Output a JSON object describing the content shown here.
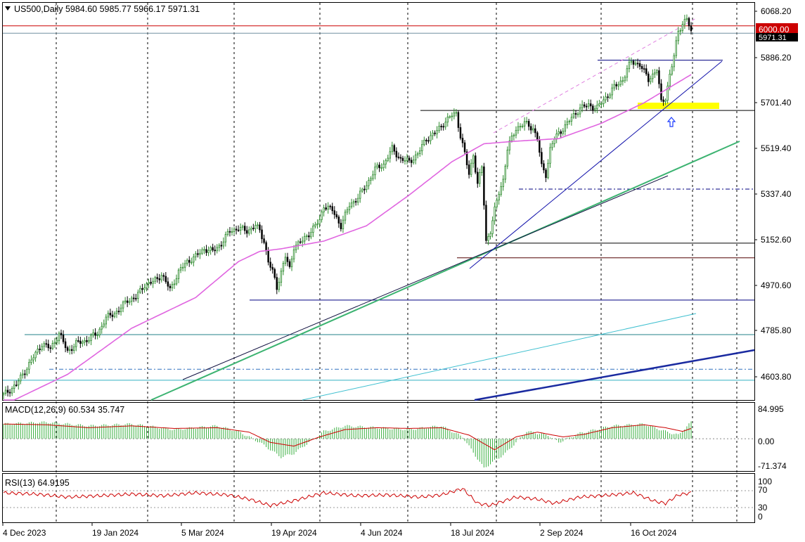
{
  "main_panel": {
    "title": "US500,Daily  5984.60 5985.77 5966.17 5971.31",
    "price_ticks": [
      "6068.20",
      "5886.20",
      "5701.40",
      "5519.40",
      "5337.40",
      "5152.60",
      "4970.60",
      "4785.80",
      "4603.80"
    ],
    "current_price_label": "5971.31",
    "level_label": "6000.00",
    "colors": {
      "bull": "#2e8b2e",
      "bear": "#000000",
      "ma_pink": "#e066e0",
      "resistance_red": "#cc0000",
      "highlight_yellow": "#ffff00",
      "trend_green": "#3cb371",
      "trend_navy": "#000080",
      "trend_blue": "#1010aa",
      "teal": "#20a0b0"
    }
  },
  "date_ticks": [
    "4 Dec 2023",
    "19 Jan 2024",
    "5 Mar 2024",
    "19 Apr 2024",
    "4 Jun 2024",
    "18 Jul 2024",
    "2 Sep 2024",
    "16 Oct 2024"
  ],
  "macd_panel": {
    "title": "MACD(12,26,9) 60.534 35.747",
    "ticks": [
      "84.995",
      "0.00",
      "-71.374"
    ]
  },
  "rsi_panel": {
    "title": "RSI(13) 64.9195",
    "ticks": [
      "100",
      "70",
      "30",
      "0"
    ]
  },
  "icons": {
    "collapse": "triangle-down-icon",
    "arrow": "up-arrow-icon"
  },
  "chart_data": {
    "type": "candlestick",
    "symbol": "US500",
    "timeframe": "Daily",
    "last_bar": {
      "open": 5984.6,
      "high": 5985.77,
      "low": 5966.17,
      "close": 5971.31
    },
    "ylim": [
      4540,
      6090
    ],
    "close_path": [
      [
        0,
        4560
      ],
      [
        6,
        4600
      ],
      [
        12,
        4680
      ],
      [
        18,
        4760
      ],
      [
        22,
        4740
      ],
      [
        26,
        4800
      ],
      [
        30,
        4730
      ],
      [
        34,
        4760
      ],
      [
        38,
        4770
      ],
      [
        44,
        4800
      ],
      [
        48,
        4860
      ],
      [
        54,
        4890
      ],
      [
        58,
        4930
      ],
      [
        62,
        4940
      ],
      [
        66,
        4990
      ],
      [
        70,
        5000
      ],
      [
        74,
        5030
      ],
      [
        78,
        4970
      ],
      [
        82,
        5040
      ],
      [
        86,
        5080
      ],
      [
        90,
        5100
      ],
      [
        94,
        5130
      ],
      [
        98,
        5120
      ],
      [
        102,
        5150
      ],
      [
        106,
        5200
      ],
      [
        110,
        5210
      ],
      [
        114,
        5200
      ],
      [
        118,
        5220
      ],
      [
        120,
        5200
      ],
      [
        122,
        5160
      ],
      [
        124,
        5080
      ],
      [
        126,
        5040
      ],
      [
        128,
        4980
      ],
      [
        130,
        5040
      ],
      [
        132,
        5100
      ],
      [
        134,
        5050
      ],
      [
        136,
        5140
      ],
      [
        140,
        5160
      ],
      [
        144,
        5200
      ],
      [
        148,
        5240
      ],
      [
        150,
        5300
      ],
      [
        154,
        5280
      ],
      [
        158,
        5220
      ],
      [
        162,
        5300
      ],
      [
        166,
        5330
      ],
      [
        170,
        5380
      ],
      [
        174,
        5440
      ],
      [
        178,
        5460
      ],
      [
        182,
        5520
      ],
      [
        186,
        5480
      ],
      [
        190,
        5470
      ],
      [
        194,
        5500
      ],
      [
        198,
        5560
      ],
      [
        202,
        5580
      ],
      [
        206,
        5620
      ],
      [
        210,
        5650
      ],
      [
        212,
        5660
      ],
      [
        214,
        5570
      ],
      [
        216,
        5500
      ],
      [
        218,
        5420
      ],
      [
        220,
        5500
      ],
      [
        222,
        5380
      ],
      [
        224,
        5450
      ],
      [
        226,
        5160
      ],
      [
        228,
        5200
      ],
      [
        230,
        5280
      ],
      [
        232,
        5350
      ],
      [
        234,
        5400
      ],
      [
        236,
        5520
      ],
      [
        238,
        5560
      ],
      [
        240,
        5600
      ],
      [
        244,
        5620
      ],
      [
        248,
        5600
      ],
      [
        250,
        5560
      ],
      [
        252,
        5450
      ],
      [
        254,
        5420
      ],
      [
        256,
        5520
      ],
      [
        258,
        5560
      ],
      [
        262,
        5600
      ],
      [
        266,
        5640
      ],
      [
        270,
        5680
      ],
      [
        274,
        5690
      ],
      [
        278,
        5680
      ],
      [
        282,
        5720
      ],
      [
        286,
        5760
      ],
      [
        290,
        5790
      ],
      [
        292,
        5830
      ],
      [
        294,
        5860
      ],
      [
        298,
        5850
      ],
      [
        302,
        5790
      ],
      [
        306,
        5830
      ],
      [
        308,
        5700
      ],
      [
        310,
        5720
      ],
      [
        312,
        5810
      ],
      [
        314,
        5880
      ],
      [
        316,
        5980
      ],
      [
        318,
        6010
      ],
      [
        320,
        6030
      ],
      [
        322,
        5971
      ]
    ],
    "n_bars": 323,
    "moving_average_path": [
      [
        0,
        4520
      ],
      [
        30,
        4640
      ],
      [
        60,
        4820
      ],
      [
        90,
        4940
      ],
      [
        110,
        5080
      ],
      [
        120,
        5120
      ],
      [
        130,
        5130
      ],
      [
        150,
        5160
      ],
      [
        170,
        5220
      ],
      [
        190,
        5340
      ],
      [
        210,
        5470
      ],
      [
        225,
        5540
      ],
      [
        240,
        5550
      ],
      [
        260,
        5560
      ],
      [
        280,
        5620
      ],
      [
        300,
        5700
      ],
      [
        322,
        5810
      ]
    ],
    "horizontal_levels": [
      6000.0,
      5971.31,
      5866,
      5670,
      5363,
      5152,
      5095,
      4930,
      4795,
      4660,
      4617
    ],
    "macd_range": [
      -80,
      90
    ],
    "macd_hist_path": [
      [
        0,
        40
      ],
      [
        20,
        45
      ],
      [
        40,
        35
      ],
      [
        60,
        40
      ],
      [
        80,
        25
      ],
      [
        100,
        35
      ],
      [
        110,
        20
      ],
      [
        120,
        -10
      ],
      [
        130,
        -50
      ],
      [
        136,
        -40
      ],
      [
        150,
        20
      ],
      [
        160,
        35
      ],
      [
        175,
        30
      ],
      [
        190,
        25
      ],
      [
        205,
        35
      ],
      [
        215,
        5
      ],
      [
        225,
        -80
      ],
      [
        235,
        -40
      ],
      [
        245,
        20
      ],
      [
        255,
        10
      ],
      [
        260,
        -10
      ],
      [
        270,
        15
      ],
      [
        285,
        35
      ],
      [
        300,
        40
      ],
      [
        310,
        20
      ],
      [
        316,
        10
      ],
      [
        322,
        45
      ]
    ],
    "macd_signal_path": [
      [
        0,
        40
      ],
      [
        20,
        38
      ],
      [
        40,
        30
      ],
      [
        60,
        35
      ],
      [
        80,
        28
      ],
      [
        100,
        30
      ],
      [
        115,
        18
      ],
      [
        125,
        -10
      ],
      [
        136,
        -20
      ],
      [
        148,
        5
      ],
      [
        160,
        25
      ],
      [
        175,
        30
      ],
      [
        190,
        28
      ],
      [
        205,
        30
      ],
      [
        218,
        10
      ],
      [
        230,
        -30
      ],
      [
        240,
        5
      ],
      [
        250,
        18
      ],
      [
        262,
        5
      ],
      [
        272,
        12
      ],
      [
        285,
        30
      ],
      [
        300,
        38
      ],
      [
        310,
        30
      ],
      [
        318,
        20
      ],
      [
        322,
        28
      ]
    ],
    "rsi_range": [
      0,
      100
    ],
    "rsi_levels": [
      70,
      30
    ],
    "rsi_path": [
      [
        0,
        65
      ],
      [
        15,
        62
      ],
      [
        30,
        55
      ],
      [
        45,
        58
      ],
      [
        60,
        62
      ],
      [
        75,
        58
      ],
      [
        90,
        65
      ],
      [
        105,
        60
      ],
      [
        115,
        50
      ],
      [
        125,
        35
      ],
      [
        135,
        45
      ],
      [
        150,
        65
      ],
      [
        165,
        58
      ],
      [
        180,
        60
      ],
      [
        195,
        55
      ],
      [
        205,
        60
      ],
      [
        215,
        75
      ],
      [
        222,
        40
      ],
      [
        228,
        35
      ],
      [
        240,
        55
      ],
      [
        250,
        50
      ],
      [
        258,
        40
      ],
      [
        270,
        55
      ],
      [
        285,
        60
      ],
      [
        295,
        65
      ],
      [
        305,
        45
      ],
      [
        310,
        40
      ],
      [
        316,
        60
      ],
      [
        322,
        65
      ]
    ]
  }
}
